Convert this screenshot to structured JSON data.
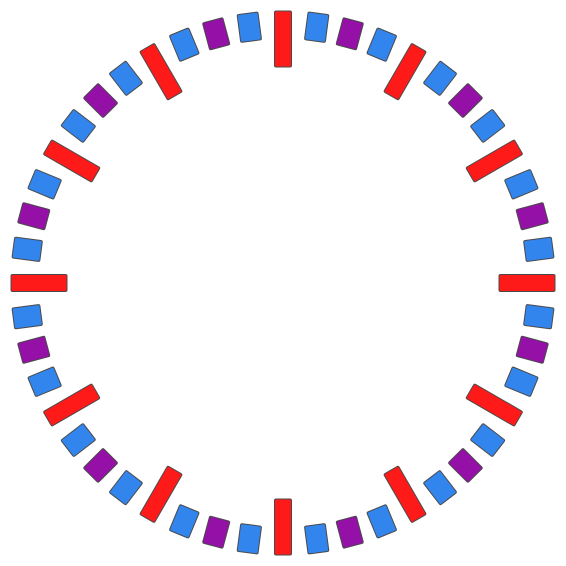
{
  "dial": {
    "segment_count": 48,
    "hour_marker_every": 4,
    "pattern": [
      "hour-marker",
      "blue",
      "purple",
      "blue"
    ],
    "colors": {
      "hour-marker": "#ff1a1a",
      "blue": "#3385ee",
      "purple": "#9410a6",
      "outline": "#4a4a4a",
      "background": "#ffffff"
    }
  }
}
